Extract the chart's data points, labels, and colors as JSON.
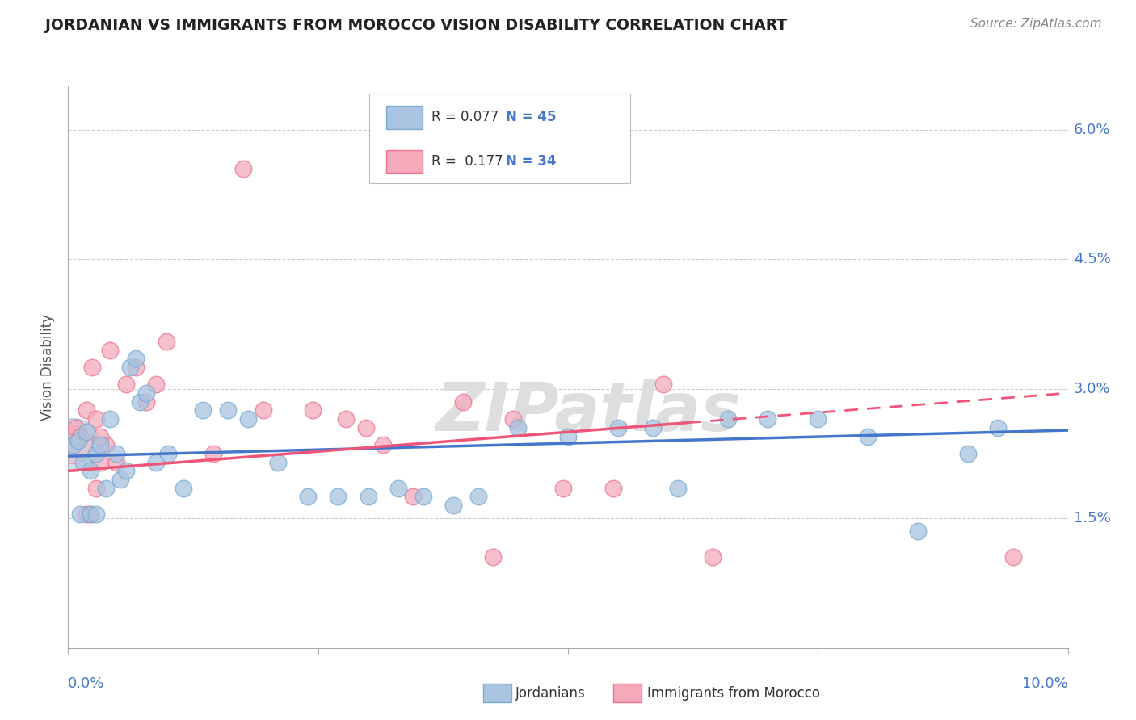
{
  "title": "JORDANIAN VS IMMIGRANTS FROM MOROCCO VISION DISABILITY CORRELATION CHART",
  "source": "Source: ZipAtlas.com",
  "ylabel": "Vision Disability",
  "xlim": [
    0.0,
    10.0
  ],
  "ylim": [
    0.0,
    6.5
  ],
  "yticks": [
    1.5,
    3.0,
    4.5,
    6.0
  ],
  "ytick_labels": [
    "1.5%",
    "3.0%",
    "4.5%",
    "6.0%"
  ],
  "blue_color": "#A8C4E0",
  "pink_color": "#F4AABB",
  "blue_edge_color": "#7AAAD0",
  "pink_edge_color": "#F07090",
  "blue_line_color": "#4477CC",
  "pink_line_color": "#EE5577",
  "jordanians_x": [
    0.05,
    0.1,
    0.15,
    0.18,
    0.22,
    0.28,
    0.32,
    0.38,
    0.42,
    0.48,
    0.52,
    0.58,
    0.62,
    0.68,
    0.72,
    0.78,
    0.88,
    1.0,
    1.15,
    1.35,
    1.6,
    1.8,
    2.1,
    2.4,
    2.7,
    3.0,
    3.3,
    3.55,
    3.85,
    4.1,
    4.5,
    5.0,
    5.5,
    5.85,
    6.1,
    6.6,
    7.0,
    7.5,
    8.0,
    8.5,
    9.0,
    9.3,
    0.12,
    0.22,
    0.28
  ],
  "jordanians_y": [
    2.35,
    2.4,
    2.15,
    2.5,
    2.05,
    2.25,
    2.35,
    1.85,
    2.65,
    2.25,
    1.95,
    2.05,
    3.25,
    3.35,
    2.85,
    2.95,
    2.15,
    2.25,
    1.85,
    2.75,
    2.75,
    2.65,
    2.15,
    1.75,
    1.75,
    1.75,
    1.85,
    1.75,
    1.65,
    1.75,
    2.55,
    2.45,
    2.55,
    2.55,
    1.85,
    2.65,
    2.65,
    2.65,
    2.45,
    1.35,
    2.25,
    2.55,
    1.55,
    1.55,
    1.55
  ],
  "morocco_x": [
    0.08,
    0.12,
    0.18,
    0.24,
    0.28,
    0.32,
    0.38,
    0.48,
    0.58,
    0.68,
    0.78,
    0.88,
    0.98,
    1.45,
    1.95,
    2.45,
    2.78,
    2.98,
    3.45,
    3.95,
    4.45,
    4.95,
    5.45,
    5.95,
    6.45,
    0.18,
    0.22,
    0.28,
    0.32,
    0.42,
    3.15,
    4.25,
    9.45,
    1.75
  ],
  "morocco_y": [
    2.55,
    2.45,
    2.75,
    3.25,
    2.65,
    2.15,
    2.35,
    2.15,
    3.05,
    3.25,
    2.85,
    3.05,
    3.55,
    2.25,
    2.75,
    2.75,
    2.65,
    2.55,
    1.75,
    2.85,
    2.65,
    1.85,
    1.85,
    3.05,
    1.05,
    1.55,
    1.55,
    1.85,
    2.45,
    3.45,
    2.35,
    1.05,
    1.05,
    5.55
  ],
  "blue_trend_start_y": 2.22,
  "blue_trend_end_y": 2.52,
  "pink_trend_start_y": 2.05,
  "pink_trend_end_y": 2.95,
  "background_color": "#FFFFFF",
  "watermark_text": "ZIPatlas",
  "watermark_color": "#DEDEDE",
  "grid_color": "#CCCCCC",
  "axis_color": "#AAAAAA",
  "title_color": "#222222",
  "source_color": "#888888",
  "tick_label_color": "#4477CC",
  "ylabel_color": "#555555",
  "legend_r1_text": "R = 0.077",
  "legend_n1_text": "N = 45",
  "legend_r2_text": "R =  0.177",
  "legend_n2_text": "N = 34"
}
